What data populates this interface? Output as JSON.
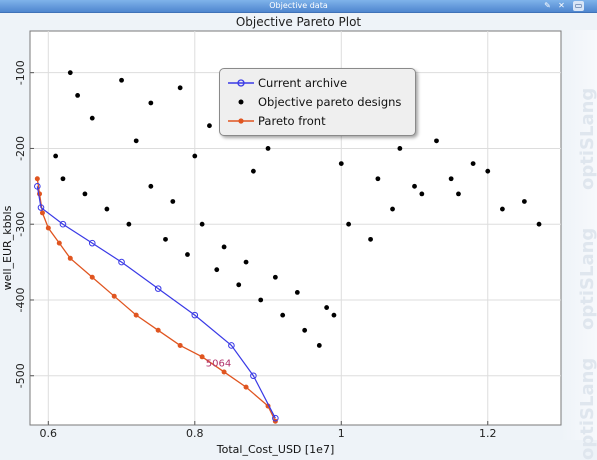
{
  "window": {
    "title": "Objective data",
    "controls": [
      "pin-icon",
      "close-icon",
      "float-icon"
    ]
  },
  "side_watermarks": [
    "optiSLang",
    "optiSLang",
    "optiSLang"
  ],
  "chart_data": {
    "type": "scatter",
    "title": "Objective Pareto Plot",
    "xlabel": "Total_Cost_USD [1e7]",
    "ylabel": "well_EUR_kbbls",
    "xlim": [
      0.575,
      1.3
    ],
    "ylim": [
      -565,
      -45
    ],
    "x_ticks": [
      "0.6",
      "0.8",
      "1",
      "1.2"
    ],
    "y_ticks": [
      "-100",
      "-200",
      "-300",
      "-400",
      "-500"
    ],
    "x_tick_values": [
      0.6,
      0.8,
      1.0,
      1.2
    ],
    "y_tick_values": [
      -100,
      -200,
      -300,
      -400,
      -500
    ],
    "grid": true,
    "legend_position": "top-center",
    "annotation": "5064",
    "series": [
      {
        "name": "Current archive",
        "color": "#3a3ae6",
        "style": "line-with-circles",
        "x": [
          0.585,
          0.59,
          0.62,
          0.66,
          0.7,
          0.75,
          0.8,
          0.85,
          0.88,
          0.91
        ],
        "y": [
          -250,
          -278,
          -300,
          -325,
          -350,
          -385,
          -420,
          -460,
          -500,
          -556
        ]
      },
      {
        "name": "Objective pareto designs",
        "color": "#000000",
        "style": "dots",
        "x": [
          0.63,
          0.64,
          0.66,
          0.7,
          0.72,
          0.74,
          0.78,
          0.8,
          0.82,
          0.85,
          0.88,
          0.9,
          0.93,
          0.96,
          1.0,
          1.02,
          1.05,
          1.08,
          1.1,
          1.13,
          1.16,
          1.2,
          1.22,
          1.25,
          1.27,
          0.61,
          0.62,
          0.65,
          0.68,
          0.71,
          0.76,
          0.79,
          0.83,
          0.86,
          0.89,
          0.92,
          0.95,
          0.97,
          0.99,
          0.74,
          0.77,
          0.81,
          0.84,
          0.87,
          0.91,
          0.94,
          0.98,
          1.01,
          1.04,
          1.07,
          1.11,
          1.15,
          1.18
        ],
        "y": [
          -100,
          -130,
          -160,
          -110,
          -190,
          -140,
          -120,
          -210,
          -170,
          -150,
          -230,
          -200,
          -130,
          -180,
          -220,
          -160,
          -240,
          -200,
          -250,
          -190,
          -260,
          -230,
          -280,
          -270,
          -300,
          -210,
          -240,
          -260,
          -280,
          -300,
          -320,
          -340,
          -360,
          -380,
          -400,
          -420,
          -440,
          -460,
          -420,
          -250,
          -270,
          -300,
          -330,
          -350,
          -370,
          -390,
          -410,
          -300,
          -320,
          -280,
          -260,
          -240,
          -220
        ]
      },
      {
        "name": "Pareto front",
        "color": "#e05520",
        "style": "line-with-dots",
        "x": [
          0.585,
          0.588,
          0.592,
          0.6,
          0.615,
          0.63,
          0.66,
          0.69,
          0.72,
          0.75,
          0.78,
          0.81,
          0.84,
          0.87,
          0.9,
          0.91
        ],
        "y": [
          -240,
          -260,
          -285,
          -305,
          -325,
          -345,
          -370,
          -395,
          -420,
          -440,
          -460,
          -475,
          -495,
          -515,
          -540,
          -560
        ]
      }
    ]
  },
  "legend": {
    "items": [
      {
        "label": "Current archive",
        "color": "#3a3ae6",
        "icon": "line-circle-marker"
      },
      {
        "label": "Objective pareto designs",
        "color": "#000000",
        "icon": "dot-marker"
      },
      {
        "label": "Pareto front",
        "color": "#e05520",
        "icon": "line-dot-marker"
      }
    ]
  }
}
